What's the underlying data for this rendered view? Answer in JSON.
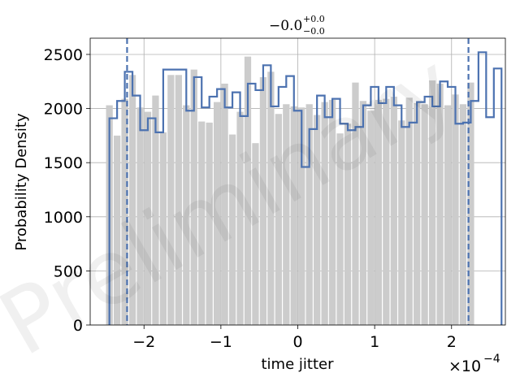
{
  "chart_data": {
    "type": "histogram",
    "title": {
      "base": "−0.0",
      "sup": "+0.0",
      "sub": "−0.0"
    },
    "xlabel": "time jitter",
    "ylabel": "Probability Density",
    "x_offset": {
      "base": "×10",
      "exp": "−4"
    },
    "watermark": "Preliminary",
    "xlim": [
      -2.7,
      2.7
    ],
    "ylim": [
      0,
      2650
    ],
    "xticks": [
      -2,
      -1,
      0,
      1,
      2
    ],
    "xtick_labels": [
      "−2",
      "−1",
      "0",
      "1",
      "2"
    ],
    "yticks": [
      0,
      500,
      1000,
      1500,
      2000,
      2500
    ],
    "ytick_labels": [
      "0",
      "500",
      "1000",
      "1500",
      "2000",
      "2500"
    ],
    "grid": true,
    "vlines": [
      -2.22,
      2.22
    ],
    "colors": {
      "fill": "#cccccc",
      "step": "#4c72b0",
      "grid": "#b0b0b0"
    },
    "series": [
      {
        "name": "filled",
        "bin_start": -2.5,
        "bin_width": 0.1,
        "values": [
          2030,
          1750,
          2090,
          2310,
          2010,
          1970,
          2120,
          1780,
          2310,
          2310,
          2030,
          2360,
          1880,
          1870,
          2060,
          2230,
          1760,
          1970,
          2480,
          1680,
          2290,
          2340,
          1950,
          2040,
          2020,
          2010,
          2040,
          1940,
          2060,
          2080,
          1770,
          1860,
          2240,
          2070,
          1980,
          2080,
          2090,
          2110,
          1890,
          2100,
          2050,
          2040,
          2260,
          2230,
          2030,
          2130,
          2040,
          2240
        ]
      },
      {
        "name": "step",
        "bin_start": -2.45,
        "bin_width": 0.1,
        "values": [
          1910,
          2070,
          2340,
          2120,
          1800,
          1910,
          1780,
          2360,
          2360,
          2360,
          1980,
          2290,
          2010,
          2110,
          2180,
          2010,
          2150,
          1930,
          2230,
          2170,
          2400,
          2020,
          2200,
          2300,
          1980,
          1460,
          1810,
          2120,
          1920,
          2090,
          1860,
          1800,
          1830,
          2030,
          2200,
          2050,
          2200,
          2030,
          1830,
          1870,
          2060,
          2110,
          2020,
          2250,
          2200,
          1860,
          1870,
          2070,
          2520,
          1920,
          2370
        ]
      }
    ]
  }
}
